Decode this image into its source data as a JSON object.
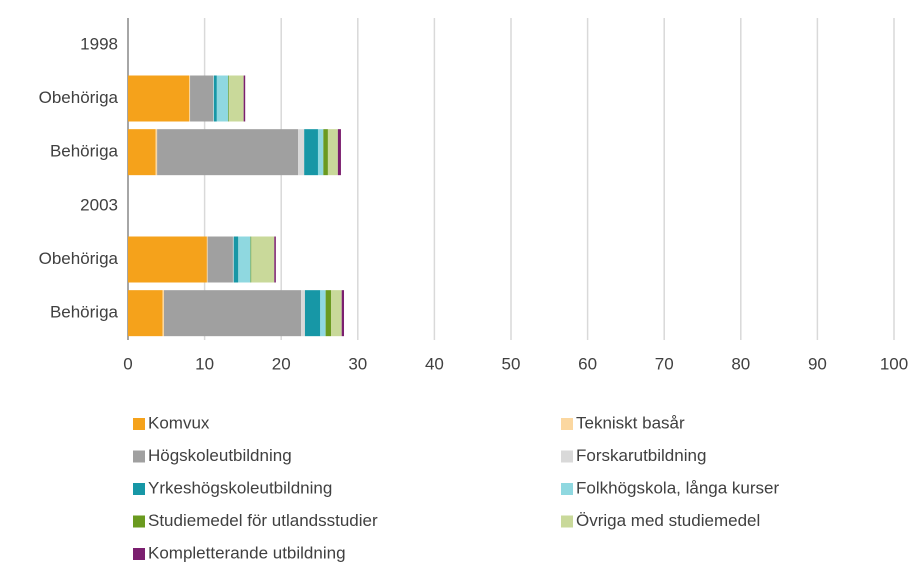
{
  "chart_data": {
    "type": "stacked-bar-horizontal",
    "categories": [
      "1998",
      "Obehöriga",
      "Behöriga",
      "2003",
      "Obehöriga",
      "Behöriga"
    ],
    "series": [
      {
        "name": "Komvux",
        "color": "#f5a21b",
        "values": [
          null,
          8,
          3.6,
          null,
          10.3,
          4.5
        ]
      },
      {
        "name": "Tekniskt basår",
        "color": "#fbd7a0",
        "values": [
          null,
          0.1,
          0.2,
          null,
          0.1,
          0.2
        ]
      },
      {
        "name": "Högskoleutbildning",
        "color": "#a0a0a0",
        "values": [
          null,
          3,
          18.4,
          null,
          3.3,
          17.9
        ]
      },
      {
        "name": "Forskarutbildning",
        "color": "#d9d9d9",
        "values": [
          null,
          0.1,
          0.8,
          null,
          0.1,
          0.5
        ]
      },
      {
        "name": "Yrkeshögskoleutbildning",
        "color": "#1797a6",
        "values": [
          null,
          0.4,
          1.8,
          null,
          0.6,
          2.0
        ]
      },
      {
        "name": "Folkhögskola, långa kurser",
        "color": "#8fd8e0",
        "values": [
          null,
          1.5,
          0.7,
          null,
          1.6,
          0.7
        ]
      },
      {
        "name": "Studiemedel för utlandsstudier",
        "color": "#6a9a1f",
        "values": [
          null,
          0.1,
          0.6,
          null,
          0.1,
          0.7
        ]
      },
      {
        "name": "Övriga med studiemedel",
        "color": "#c9d99a",
        "values": [
          null,
          1.9,
          1.3,
          null,
          3.0,
          1.4
        ]
      },
      {
        "name": "Kompletterande utbildning",
        "color": "#7b1f6f",
        "values": [
          null,
          0.2,
          0.4,
          null,
          0.2,
          0.3
        ]
      }
    ],
    "xlim": [
      0,
      100
    ],
    "xticks": [
      0,
      10,
      20,
      30,
      40,
      50,
      60,
      70,
      80,
      90,
      100
    ],
    "grid": true,
    "legend": "bottom"
  }
}
